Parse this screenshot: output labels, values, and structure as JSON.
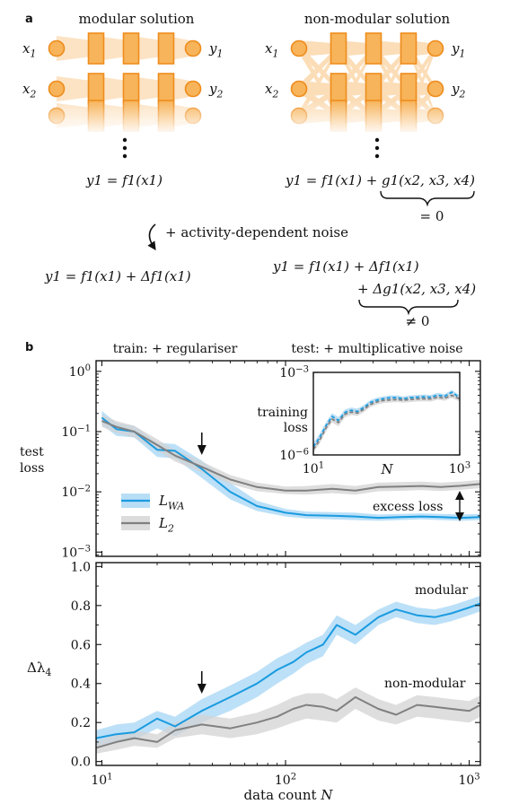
{
  "panel_a": {
    "label": "a",
    "modular_title": "modular solution",
    "nonmodular_title": "non-modular solution",
    "inputs": [
      "x1",
      "x2"
    ],
    "outputs": [
      "y1",
      "y2"
    ],
    "modular_eq": "y1 = f1(x1)",
    "nonmodular_eq": "y1 = f1(x1) + g1(x2, x3, x4)",
    "nonmodular_brace": "= 0",
    "arrow_text": "+ activity-dependent noise",
    "modular_noise_eq": "y1 = f1(x1) + Δf1(x1)",
    "nonmodular_noise_eq_1": "y1 = f1(x1) + Δf1(x1)",
    "nonmodular_noise_eq_2": "+ Δg1(x2, x3, x4)",
    "nonmodular_noise_brace": "≠ 0",
    "colors": {
      "node_fill": "#f7b45a",
      "node_stroke": "#ee8c1c",
      "connection": "#f9c27e"
    }
  },
  "panel_b": {
    "label": "b",
    "train_note": "train: + regulariser",
    "test_note": "test: + multiplicative noise",
    "annotation_excess": "excess loss",
    "annotation_modular": "modular",
    "annotation_nonmodular": "non-modular"
  },
  "chart_data": [
    {
      "type": "line",
      "ylabel": "test loss",
      "xscale": "log",
      "yscale": "log",
      "xlim": [
        9.3,
        1150
      ],
      "ylim": [
        0.00085,
        1.5
      ],
      "xticks": [
        10,
        100,
        1000
      ],
      "xtick_labels": [
        "10^1",
        "10^2",
        "10^3"
      ],
      "yticks": [
        0.001,
        0.01,
        0.1,
        1
      ],
      "ytick_labels": [
        "10^-3",
        "10^-2",
        "10^-1",
        "10^0"
      ],
      "arrow_at": 35,
      "legend": {
        "placement": "center-left",
        "entries": [
          "L_WA",
          "L_2"
        ]
      },
      "series": [
        {
          "name": "L_WA",
          "color": "#1a9be0",
          "band_color": "#a6d6f4",
          "x": [
            10,
            12,
            15,
            20,
            25,
            35,
            50,
            70,
            100,
            130,
            180,
            240,
            320,
            420,
            550,
            700,
            900,
            1150
          ],
          "y": [
            0.17,
            0.11,
            0.1,
            0.05,
            0.048,
            0.024,
            0.01,
            0.0058,
            0.0045,
            0.0041,
            0.004,
            0.0039,
            0.0037,
            0.0038,
            0.0039,
            0.0038,
            0.0037,
            0.0038
          ],
          "lo": [
            0.13,
            0.085,
            0.08,
            0.038,
            0.036,
            0.017,
            0.0075,
            0.0048,
            0.0039,
            0.0036,
            0.0035,
            0.0034,
            0.0033,
            0.0034,
            0.0035,
            0.0034,
            0.0033,
            0.0034
          ],
          "hi": [
            0.22,
            0.14,
            0.125,
            0.065,
            0.062,
            0.033,
            0.014,
            0.0071,
            0.0052,
            0.0047,
            0.0046,
            0.0045,
            0.0042,
            0.0043,
            0.0044,
            0.0043,
            0.0042,
            0.0043
          ]
        },
        {
          "name": "L_2",
          "color": "#808080",
          "band_color": "#d3d3d3",
          "x": [
            10,
            12,
            15,
            20,
            25,
            35,
            50,
            70,
            100,
            130,
            180,
            240,
            320,
            420,
            550,
            700,
            900,
            1150
          ],
          "y": [
            0.15,
            0.12,
            0.1,
            0.06,
            0.04,
            0.026,
            0.016,
            0.012,
            0.0105,
            0.0105,
            0.0112,
            0.0105,
            0.012,
            0.0122,
            0.0125,
            0.012,
            0.0126,
            0.0135
          ],
          "lo": [
            0.12,
            0.095,
            0.08,
            0.048,
            0.032,
            0.021,
            0.0135,
            0.0102,
            0.0092,
            0.009,
            0.0095,
            0.009,
            0.0102,
            0.0104,
            0.0107,
            0.0103,
            0.0108,
            0.0115
          ],
          "hi": [
            0.19,
            0.15,
            0.125,
            0.075,
            0.05,
            0.032,
            0.019,
            0.0142,
            0.0122,
            0.0125,
            0.0135,
            0.0125,
            0.0142,
            0.0145,
            0.0148,
            0.0142,
            0.0148,
            0.0158
          ]
        }
      ]
    },
    {
      "type": "line",
      "ylabel": "training loss",
      "xlabel": "N",
      "xscale": "log",
      "yscale": "log",
      "xlim": [
        10,
        1000
      ],
      "ylim": [
        1e-06,
        0.001
      ],
      "xticks": [
        10,
        1000
      ],
      "xtick_labels": [
        "10^1",
        "10^3"
      ],
      "yticks": [
        1e-06,
        0.001
      ],
      "ytick_labels": [
        "10^-6",
        "10^-3"
      ],
      "series": [
        {
          "name": "L_WA",
          "color": "#1a9be0",
          "band_color": "#a6d6f4",
          "x": [
            10,
            12,
            15,
            18,
            22,
            27,
            33,
            40,
            50,
            60,
            75,
            90,
            110,
            140,
            170,
            210,
            260,
            320,
            400,
            500,
            620,
            780,
            1000
          ],
          "y": [
            2e-06,
            4e-06,
            1.2e-05,
            2.5e-05,
            1.8e-05,
            3.5e-05,
            4.2e-05,
            3.8e-05,
            5.5e-05,
            8e-05,
            0.0001,
            0.00011,
            0.00012,
            0.00012,
            0.00011,
            0.00012,
            0.000125,
            0.00013,
            0.000125,
            0.00015,
            0.000135,
            0.00019,
            0.00012
          ],
          "lo": [
            1.5e-06,
            3e-06,
            9e-06,
            1.9e-05,
            1.4e-05,
            2.8e-05,
            3.4e-05,
            3.1e-05,
            4.5e-05,
            6.6e-05,
            8.3e-05,
            9.2e-05,
            0.0001,
            0.0001,
            9.2e-05,
            0.0001,
            0.000104,
            0.000108,
            0.000104,
            0.000125,
            0.000112,
            0.000158,
            0.0001
          ],
          "hi": [
            2.8e-06,
            5.5e-06,
            1.6e-05,
            3.3e-05,
            2.4e-05,
            4.5e-05,
            5.3e-05,
            4.8e-05,
            6.8e-05,
            9.8e-05,
            0.000122,
            0.000134,
            0.000146,
            0.000146,
            0.000134,
            0.000146,
            0.000152,
            0.000158,
            0.000152,
            0.00018,
            0.000164,
            0.00023,
            0.000146
          ]
        },
        {
          "name": "L_2",
          "color": "#808080",
          "band_color": "#d3d3d3",
          "x": [
            10,
            12,
            15,
            18,
            22,
            27,
            33,
            40,
            50,
            60,
            75,
            90,
            110,
            140,
            170,
            210,
            260,
            320,
            400,
            500,
            620,
            780,
            1000
          ],
          "y": [
            1.6e-06,
            3.2e-06,
            1e-05,
            2e-05,
            1.5e-05,
            3e-05,
            3.6e-05,
            3.3e-05,
            4.7e-05,
            6.8e-05,
            8.5e-05,
            9.5e-05,
            0.0001,
            0.000103,
            9.8e-05,
            0.000103,
            0.000108,
            0.00011,
            0.000108,
            0.000125,
            0.000115,
            0.000145,
            0.000108
          ],
          "lo": [
            1.2e-06,
            2.4e-06,
            7.5e-06,
            1.5e-05,
            1.1e-05,
            2.3e-05,
            2.8e-05,
            2.6e-05,
            3.7e-05,
            5.4e-05,
            6.8e-05,
            7.6e-05,
            8e-05,
            8.3e-05,
            7.9e-05,
            8.3e-05,
            8.7e-05,
            8.9e-05,
            8.7e-05,
            0.000101,
            9.3e-05,
            0.000117,
            8.7e-05
          ],
          "hi": [
            2.1e-06,
            4.2e-06,
            1.3e-05,
            2.6e-05,
            1.95e-05,
            3.9e-05,
            4.6e-05,
            4.2e-05,
            6e-05,
            8.6e-05,
            0.000107,
            0.00012,
            0.000126,
            0.00013,
            0.000124,
            0.00013,
            0.000136,
            0.000138,
            0.000136,
            0.000158,
            0.000145,
            0.000182,
            0.000136
          ]
        }
      ]
    },
    {
      "type": "line",
      "ylabel": "Δλ4",
      "xlabel": "data count N",
      "xscale": "log",
      "xlim": [
        9.3,
        1150
      ],
      "ylim": [
        -0.02,
        1.02
      ],
      "xticks": [
        10,
        100,
        1000
      ],
      "xtick_labels": [
        "10^1",
        "10^2",
        "10^3"
      ],
      "yticks": [
        0,
        0.2,
        0.4,
        0.6,
        0.8,
        1.0
      ],
      "ytick_labels": [
        "0.0",
        "0.2",
        "0.4",
        "0.6",
        "0.8",
        "1.0"
      ],
      "arrow_at": 35,
      "series": [
        {
          "name": "L_WA",
          "color": "#1a9be0",
          "band_color": "#a6d6f4",
          "x": [
            9.3,
            12,
            15,
            20,
            25,
            35,
            50,
            70,
            90,
            110,
            130,
            160,
            190,
            240,
            320,
            400,
            520,
            650,
            800,
            1000,
            1150
          ],
          "y": [
            0.12,
            0.14,
            0.15,
            0.22,
            0.18,
            0.26,
            0.33,
            0.4,
            0.47,
            0.51,
            0.56,
            0.6,
            0.7,
            0.65,
            0.74,
            0.78,
            0.75,
            0.74,
            0.76,
            0.79,
            0.81
          ],
          "lo": [
            0.08,
            0.1,
            0.11,
            0.17,
            0.13,
            0.2,
            0.26,
            0.33,
            0.4,
            0.45,
            0.5,
            0.54,
            0.65,
            0.6,
            0.7,
            0.74,
            0.71,
            0.7,
            0.72,
            0.75,
            0.77
          ],
          "hi": [
            0.16,
            0.19,
            0.2,
            0.26,
            0.23,
            0.32,
            0.39,
            0.46,
            0.53,
            0.57,
            0.61,
            0.65,
            0.75,
            0.7,
            0.78,
            0.82,
            0.79,
            0.78,
            0.8,
            0.83,
            0.85
          ]
        },
        {
          "name": "L_2",
          "color": "#808080",
          "band_color": "#d3d3d3",
          "x": [
            9.3,
            12,
            15,
            20,
            25,
            35,
            50,
            70,
            90,
            110,
            130,
            160,
            190,
            240,
            320,
            400,
            520,
            650,
            800,
            1000,
            1150
          ],
          "y": [
            0.07,
            0.1,
            0.12,
            0.1,
            0.16,
            0.19,
            0.17,
            0.2,
            0.23,
            0.27,
            0.29,
            0.28,
            0.26,
            0.33,
            0.27,
            0.24,
            0.29,
            0.28,
            0.27,
            0.26,
            0.29
          ],
          "lo": [
            0.04,
            0.06,
            0.08,
            0.07,
            0.12,
            0.14,
            0.12,
            0.14,
            0.17,
            0.2,
            0.22,
            0.21,
            0.2,
            0.27,
            0.21,
            0.19,
            0.23,
            0.22,
            0.21,
            0.2,
            0.23
          ],
          "hi": [
            0.1,
            0.14,
            0.16,
            0.14,
            0.2,
            0.24,
            0.22,
            0.25,
            0.29,
            0.33,
            0.35,
            0.35,
            0.32,
            0.38,
            0.32,
            0.29,
            0.34,
            0.33,
            0.32,
            0.31,
            0.34
          ]
        }
      ]
    }
  ]
}
